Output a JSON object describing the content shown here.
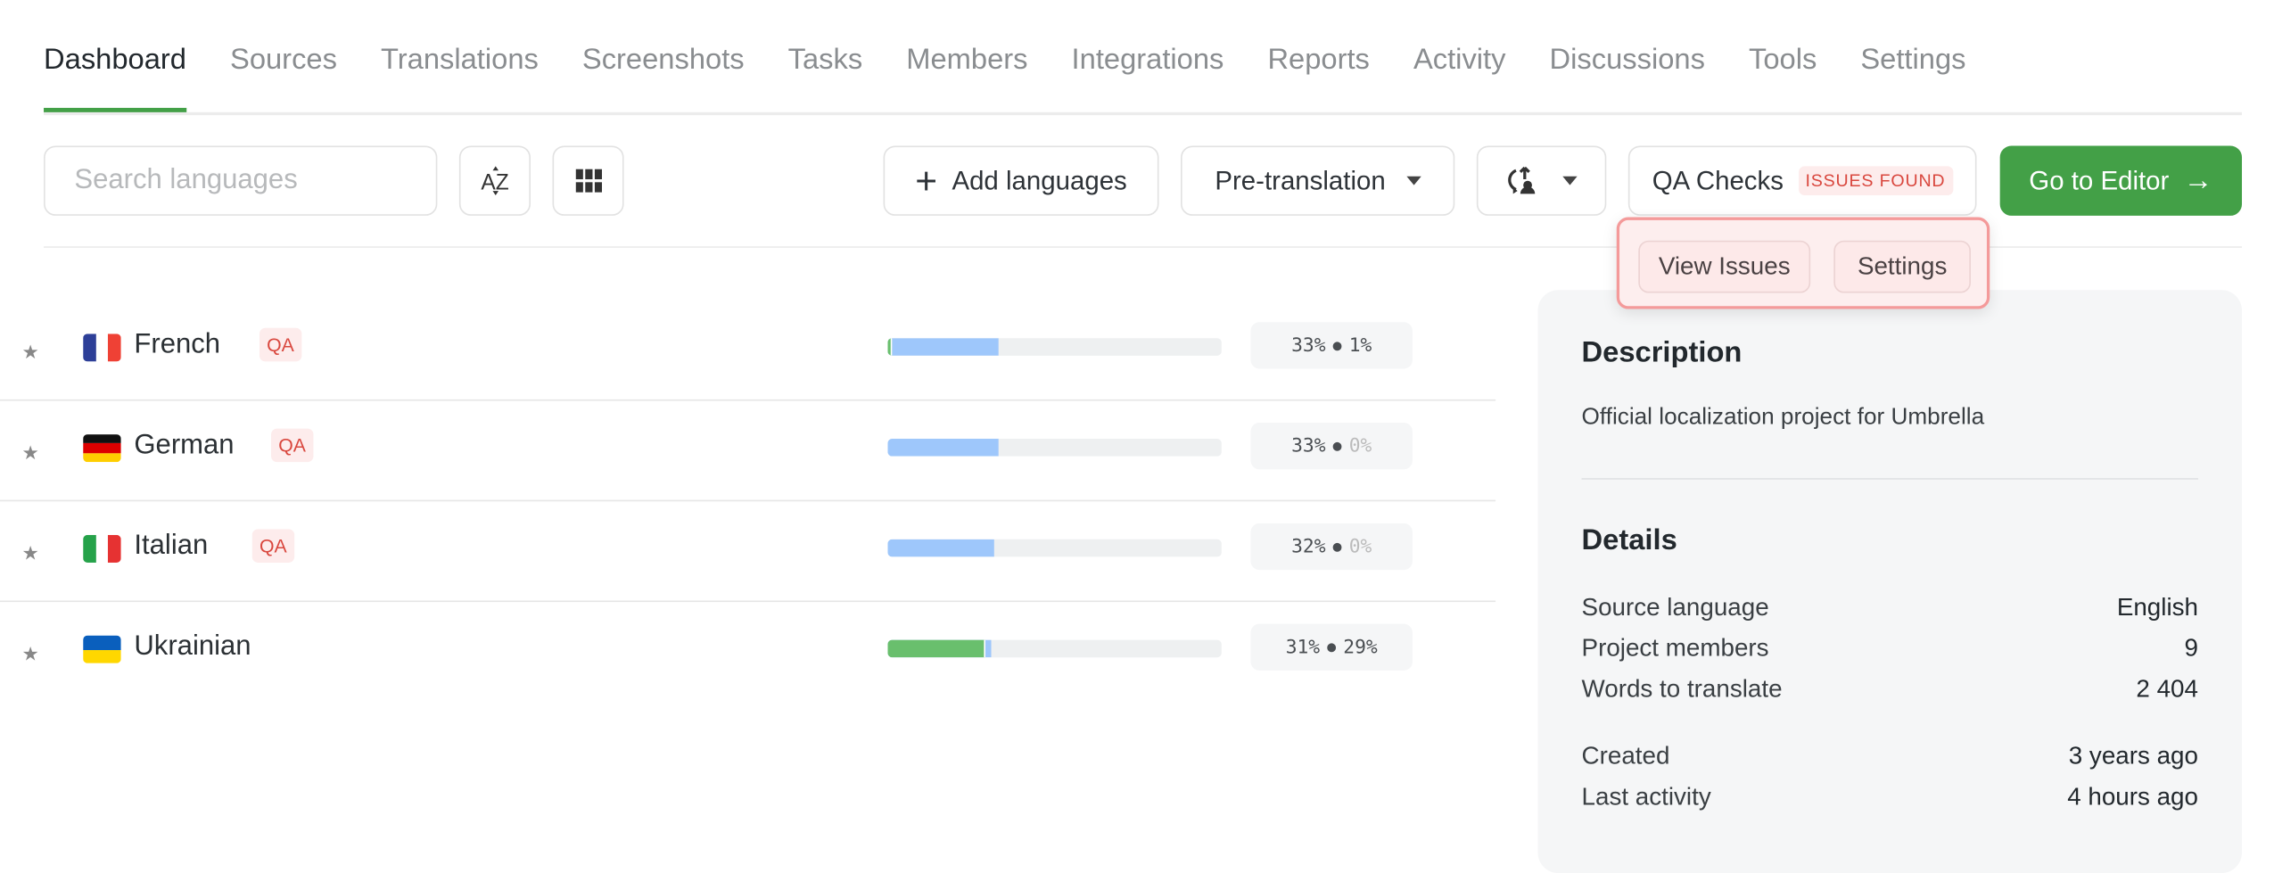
{
  "tabs": [
    "Dashboard",
    "Sources",
    "Translations",
    "Screenshots",
    "Tasks",
    "Members",
    "Integrations",
    "Reports",
    "Activity",
    "Discussions",
    "Tools",
    "Settings"
  ],
  "active_tab": "Dashboard",
  "toolbar": {
    "search_placeholder": "Search languages",
    "sort_icon": "sort-az-icon",
    "grid_icon": "grid-view-icon",
    "add_languages": "Add languages",
    "pre_translation": "Pre-translation",
    "qa_checks": "QA Checks",
    "qa_badge": "ISSUES FOUND",
    "go_to_editor": "Go to Editor"
  },
  "qa_dropdown": {
    "view_issues": "View Issues",
    "settings": "Settings"
  },
  "colors": {
    "accent": "#43a047",
    "translated": "#9ec7fb",
    "approved": "#69bf6d",
    "qa": "#d9473e"
  },
  "languages": [
    {
      "name": "French",
      "qa": "QA",
      "translated": 33,
      "approved": 1,
      "translated_label": "33%",
      "approved_label": "1%"
    },
    {
      "name": "German",
      "qa": "QA",
      "translated": 33,
      "approved": 0,
      "translated_label": "33%",
      "approved_label": "0%"
    },
    {
      "name": "Italian",
      "qa": "QA",
      "translated": 32,
      "approved": 0,
      "translated_label": "32%",
      "approved_label": "0%"
    },
    {
      "name": "Ukrainian",
      "qa": "",
      "translated": 31,
      "approved": 29,
      "translated_label": "31%",
      "approved_label": "29%"
    }
  ],
  "sidebar": {
    "description_title": "Description",
    "description": "Official localization project for Umbrella",
    "details_title": "Details",
    "details": [
      {
        "label": "Source language",
        "value": "English"
      },
      {
        "label": "Project members",
        "value": "9"
      },
      {
        "label": "Words to translate",
        "value": "2 404"
      },
      {
        "label": "Created",
        "value": "3 years ago"
      },
      {
        "label": "Last activity",
        "value": "4 hours ago"
      }
    ]
  }
}
